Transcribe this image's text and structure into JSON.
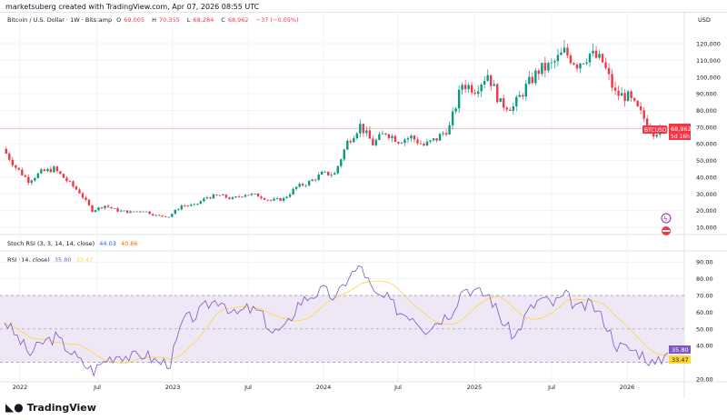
{
  "credit": "marketsuberg created with TradingView.com, Apr 07, 2026 08:55 UTC",
  "header": {
    "symbol": "Bitcoin / U.S. Dollar · 1W · Bitstamp",
    "o_label": "O",
    "o": "69,005",
    "h_label": "H",
    "h": "70,355",
    "l_label": "L",
    "l": "68,284",
    "c_label": "C",
    "c": "68,962",
    "change": "−37 (−0.05%)"
  },
  "currency": "USD",
  "price_tag": {
    "symbol": "BTCUSD",
    "price": "68,962",
    "countdown": "5d 16h"
  },
  "stoch": {
    "label": "Stoch RSI (3, 3, 14, 14, close)",
    "k": "44.03",
    "d": "40.86"
  },
  "rsi": {
    "label": "RSI (14, close)",
    "value": "35.80",
    "ma": "33.47"
  },
  "brand": "TradingView",
  "colors": {
    "up": "#089981",
    "down": "#f23645",
    "rsi": "#7e57c2",
    "rsi_ma": "#fdd835",
    "band": "#ede7f6"
  },
  "chart_data": [
    {
      "type": "candlestick",
      "title": "Bitcoin / U.S. Dollar · 1W · Bitstamp",
      "ylim": [
        5000,
        130000
      ],
      "yticks": [
        "120,000",
        "110,000",
        "100,000",
        "90,000",
        "80,000",
        "70,000",
        "60,000",
        "50,000",
        "40,000",
        "30,000",
        "20,000",
        "10,000"
      ],
      "xticks": [
        "2022",
        "Jul",
        "2023",
        "Jul",
        "2024",
        "Jul",
        "2025",
        "Jul",
        "2026"
      ],
      "months": [
        "2021-11",
        "2021-12",
        "2022-01",
        "2022-02",
        "2022-03",
        "2022-04",
        "2022-05",
        "2022-06",
        "2022-07",
        "2022-08",
        "2022-09",
        "2022-10",
        "2022-11",
        "2022-12",
        "2023-01",
        "2023-02",
        "2023-03",
        "2023-04",
        "2023-05",
        "2023-06",
        "2023-07",
        "2023-08",
        "2023-09",
        "2023-10",
        "2023-11",
        "2023-12",
        "2024-01",
        "2024-02",
        "2024-03",
        "2024-04",
        "2024-05",
        "2024-06",
        "2024-07",
        "2024-08",
        "2024-09",
        "2024-10",
        "2024-11",
        "2024-12",
        "2025-01",
        "2025-02",
        "2025-03",
        "2025-04",
        "2025-05",
        "2025-06",
        "2025-07",
        "2025-08",
        "2025-09",
        "2025-10",
        "2025-11",
        "2025-12",
        "2026-01",
        "2026-02",
        "2026-03"
      ],
      "close": [
        57000,
        46000,
        38000,
        43000,
        45000,
        38000,
        31000,
        20000,
        23000,
        20000,
        19000,
        20000,
        17000,
        16500,
        23000,
        23000,
        28000,
        29000,
        27000,
        30000,
        29000,
        26000,
        27000,
        34000,
        37000,
        42000,
        42000,
        61000,
        71000,
        60000,
        67000,
        62000,
        64000,
        59000,
        63000,
        70000,
        96000,
        93000,
        102000,
        84000,
        82000,
        94000,
        104000,
        107000,
        115000,
        108000,
        114000,
        109000,
        90000,
        88000,
        78000,
        67000,
        68962
      ],
      "last_price": 68962
    },
    {
      "type": "line",
      "title": "RSI (14, close)",
      "ylim": [
        20,
        95
      ],
      "yticks": [
        "90.00",
        "80.00",
        "70.00",
        "60.00",
        "50.00",
        "40.00",
        "20.00"
      ],
      "bands": [
        30,
        70
      ],
      "rsi": [
        55,
        45,
        35,
        42,
        45,
        38,
        30,
        25,
        32,
        35,
        33,
        35,
        30,
        30,
        55,
        58,
        65,
        68,
        58,
        62,
        60,
        48,
        50,
        65,
        70,
        73,
        68,
        82,
        87,
        70,
        68,
        60,
        58,
        50,
        55,
        60,
        75,
        72,
        70,
        55,
        45,
        60,
        68,
        65,
        70,
        62,
        65,
        55,
        40,
        38,
        35,
        28,
        35.8
      ]
    }
  ]
}
